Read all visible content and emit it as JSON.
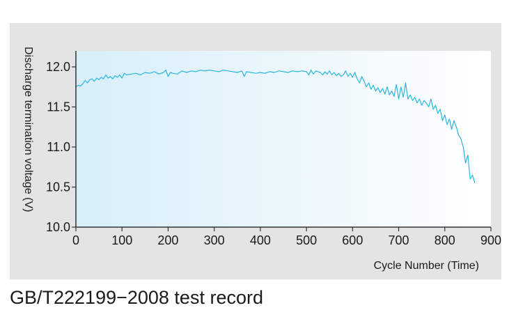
{
  "caption": "GB/T222199−2008 test record",
  "colors": {
    "line": "#29b6e0",
    "panel": "#e4e4e5",
    "plot_left": "#d7eef9",
    "plot_right": "#ffffff",
    "axis": "#333333"
  },
  "chart_data": {
    "type": "line",
    "title": "",
    "xlabel": "Cycle Number (Time)",
    "ylabel": "Discharge termination voltage (V)",
    "xlim": [
      0,
      900
    ],
    "ylim": [
      10.0,
      12.2
    ],
    "xticks": [
      0,
      100,
      200,
      300,
      400,
      500,
      600,
      700,
      800,
      900
    ],
    "yticks": [
      10.0,
      10.5,
      11.0,
      11.5,
      12.0
    ],
    "xtick_labels": [
      "0",
      "100",
      "200",
      "300",
      "400",
      "500",
      "600",
      "700",
      "800",
      "900"
    ],
    "ytick_labels": [
      "10.0",
      "10.5",
      "11.0",
      "11.5",
      "12.0"
    ],
    "grid": false,
    "legend": "none",
    "series": [
      {
        "x": [
          0,
          5,
          10,
          15,
          20,
          25,
          30,
          35,
          40,
          45,
          50,
          55,
          60,
          65,
          70,
          75,
          80,
          85,
          90,
          95,
          100,
          105,
          110,
          120,
          130,
          140,
          150,
          160,
          170,
          180,
          190,
          195,
          200,
          205,
          210,
          220,
          230,
          240,
          250,
          260,
          270,
          280,
          290,
          300,
          310,
          320,
          330,
          340,
          350,
          360,
          365,
          370,
          380,
          390,
          400,
          410,
          420,
          430,
          440,
          450,
          460,
          470,
          480,
          490,
          500,
          505,
          510,
          515,
          520,
          530,
          535,
          540,
          545,
          550,
          555,
          560,
          565,
          570,
          575,
          580,
          585,
          590,
          595,
          600,
          605,
          610,
          615,
          620,
          625,
          630,
          635,
          640,
          645,
          650,
          655,
          660,
          665,
          670,
          675,
          680,
          685,
          690,
          695,
          700,
          705,
          710,
          715,
          720,
          725,
          730,
          735,
          740,
          745,
          750,
          755,
          760,
          765,
          770,
          775,
          780,
          785,
          790,
          795,
          800,
          805,
          810,
          815,
          820,
          825,
          830,
          835,
          840,
          845,
          850,
          855,
          860,
          865
        ],
        "y": [
          11.75,
          11.77,
          11.76,
          11.79,
          11.83,
          11.8,
          11.84,
          11.85,
          11.82,
          11.86,
          11.84,
          11.87,
          11.85,
          11.9,
          11.86,
          11.88,
          11.85,
          11.89,
          11.87,
          11.9,
          11.86,
          11.92,
          11.9,
          11.91,
          11.92,
          11.9,
          11.93,
          11.92,
          11.94,
          11.91,
          11.93,
          11.96,
          11.88,
          11.93,
          11.92,
          11.91,
          11.95,
          11.93,
          11.95,
          11.94,
          11.96,
          11.95,
          11.96,
          11.95,
          11.94,
          11.96,
          11.95,
          11.94,
          11.93,
          11.95,
          11.88,
          11.94,
          11.93,
          11.92,
          11.93,
          11.92,
          11.94,
          11.93,
          11.95,
          11.94,
          11.93,
          11.95,
          11.94,
          11.95,
          11.94,
          11.9,
          11.96,
          11.91,
          11.95,
          11.93,
          11.9,
          11.94,
          11.91,
          11.95,
          11.9,
          11.93,
          11.89,
          11.92,
          11.88,
          11.9,
          11.95,
          11.88,
          11.92,
          11.87,
          11.93,
          11.85,
          11.8,
          11.88,
          11.82,
          11.75,
          11.8,
          11.72,
          11.77,
          11.7,
          11.74,
          11.68,
          11.73,
          11.66,
          11.75,
          11.65,
          11.7,
          11.63,
          11.78,
          11.6,
          11.75,
          11.62,
          11.8,
          11.6,
          11.65,
          11.58,
          11.62,
          11.55,
          11.6,
          11.52,
          11.58,
          11.55,
          11.5,
          11.6,
          11.47,
          11.52,
          11.42,
          11.47,
          11.33,
          11.4,
          11.28,
          11.35,
          11.22,
          11.33,
          11.25,
          11.15,
          11.1,
          11.0,
          10.8,
          10.9,
          10.6,
          10.65,
          10.55
        ]
      }
    ]
  }
}
